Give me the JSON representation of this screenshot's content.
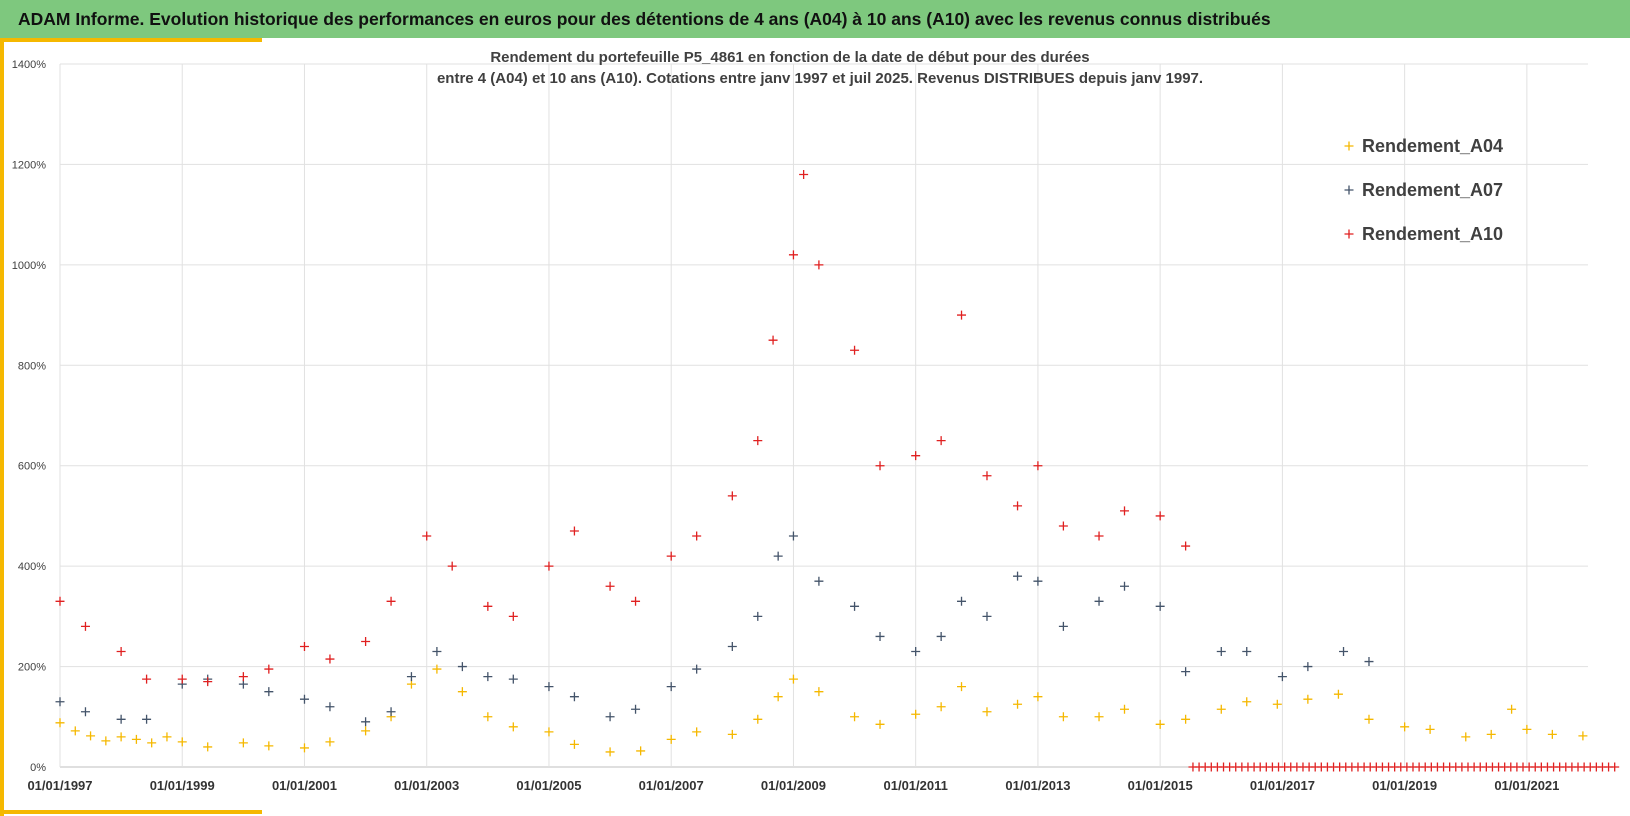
{
  "banner": {
    "title": "ADAM Informe. Evolution historique des performances en euros pour des détentions de 4 ans (A04) à 10 ans (A10) avec les revenus connus distribués"
  },
  "colors": {
    "banner_bg": "#7ec87e",
    "accent": "#f5b800",
    "A04": "#f5b800",
    "A07": "#44546a",
    "A10": "#e02020"
  },
  "chart_data": {
    "type": "scatter",
    "title_line1": "Rendement du portefeuille P5_4861 en fonction de la date de début pour des durées",
    "title_line2": "entre 4 (A04) et 10 ans (A10). Cotations  entre janv 1997 et juil 2025. Revenus DISTRIBUES  depuis janv 1997.",
    "marker": "+",
    "legend_position": "right",
    "grid": true,
    "x_range": [
      "1997-01-01",
      "2022-01-01"
    ],
    "ylim": [
      0,
      1400
    ],
    "y_unit": "%",
    "y_ticks": [
      "0%",
      "200%",
      "400%",
      "600%",
      "800%",
      "1000%",
      "1200%",
      "1400%"
    ],
    "x_ticks": [
      "01/01/1997",
      "01/01/1999",
      "01/01/2001",
      "01/01/2003",
      "01/01/2005",
      "01/01/2007",
      "01/01/2009",
      "01/01/2011",
      "01/01/2013",
      "01/01/2015",
      "01/01/2017",
      "01/01/2019",
      "01/01/2021"
    ],
    "series": [
      {
        "name": "Rendement_A04",
        "color": "#f5b800",
        "points": [
          [
            "1997-01",
            88
          ],
          [
            "1997-04",
            72
          ],
          [
            "1997-07",
            62
          ],
          [
            "1997-10",
            52
          ],
          [
            "1998-01",
            60
          ],
          [
            "1998-04",
            55
          ],
          [
            "1998-07",
            48
          ],
          [
            "1998-10",
            60
          ],
          [
            "1999-01",
            50
          ],
          [
            "1999-06",
            40
          ],
          [
            "2000-01",
            48
          ],
          [
            "2000-06",
            42
          ],
          [
            "2001-01",
            38
          ],
          [
            "2001-06",
            50
          ],
          [
            "2002-01",
            72
          ],
          [
            "2002-06",
            100
          ],
          [
            "2002-10",
            165
          ],
          [
            "2003-03",
            195
          ],
          [
            "2003-08",
            150
          ],
          [
            "2004-01",
            100
          ],
          [
            "2004-06",
            80
          ],
          [
            "2005-01",
            70
          ],
          [
            "2005-06",
            45
          ],
          [
            "2006-01",
            30
          ],
          [
            "2006-07",
            32
          ],
          [
            "2007-01",
            55
          ],
          [
            "2007-06",
            70
          ],
          [
            "2008-01",
            65
          ],
          [
            "2008-06",
            95
          ],
          [
            "2008-10",
            140
          ],
          [
            "2009-01",
            175
          ],
          [
            "2009-06",
            150
          ],
          [
            "2010-01",
            100
          ],
          [
            "2010-06",
            85
          ],
          [
            "2011-01",
            105
          ],
          [
            "2011-06",
            120
          ],
          [
            "2011-10",
            160
          ],
          [
            "2012-03",
            110
          ],
          [
            "2012-09",
            125
          ],
          [
            "2013-01",
            140
          ],
          [
            "2013-06",
            100
          ],
          [
            "2014-01",
            100
          ],
          [
            "2014-06",
            115
          ],
          [
            "2015-01",
            85
          ],
          [
            "2015-06",
            95
          ],
          [
            "2016-01",
            115
          ],
          [
            "2016-06",
            130
          ],
          [
            "2016-12",
            125
          ],
          [
            "2017-06",
            135
          ],
          [
            "2017-12",
            145
          ],
          [
            "2018-06",
            95
          ],
          [
            "2019-01",
            80
          ],
          [
            "2019-06",
            75
          ],
          [
            "2020-01",
            60
          ],
          [
            "2020-06",
            65
          ],
          [
            "2020-10",
            115
          ],
          [
            "2021-01",
            75
          ],
          [
            "2021-06",
            65
          ],
          [
            "2021-12",
            62
          ]
        ]
      },
      {
        "name": "Rendement_A07",
        "color": "#44546a",
        "points": [
          [
            "1997-01",
            130
          ],
          [
            "1997-06",
            110
          ],
          [
            "1998-01",
            95
          ],
          [
            "1998-06",
            95
          ],
          [
            "1999-01",
            165
          ],
          [
            "1999-06",
            175
          ],
          [
            "2000-01",
            165
          ],
          [
            "2000-06",
            150
          ],
          [
            "2001-01",
            135
          ],
          [
            "2001-06",
            120
          ],
          [
            "2002-01",
            90
          ],
          [
            "2002-06",
            110
          ],
          [
            "2002-10",
            180
          ],
          [
            "2003-03",
            230
          ],
          [
            "2003-08",
            200
          ],
          [
            "2004-01",
            180
          ],
          [
            "2004-06",
            175
          ],
          [
            "2005-01",
            160
          ],
          [
            "2005-06",
            140
          ],
          [
            "2006-01",
            100
          ],
          [
            "2006-06",
            115
          ],
          [
            "2007-01",
            160
          ],
          [
            "2007-06",
            195
          ],
          [
            "2008-01",
            240
          ],
          [
            "2008-06",
            300
          ],
          [
            "2008-10",
            420
          ],
          [
            "2009-01",
            460
          ],
          [
            "2009-06",
            370
          ],
          [
            "2010-01",
            320
          ],
          [
            "2010-06",
            260
          ],
          [
            "2011-01",
            230
          ],
          [
            "2011-06",
            260
          ],
          [
            "2011-10",
            330
          ],
          [
            "2012-03",
            300
          ],
          [
            "2012-09",
            380
          ],
          [
            "2013-01",
            370
          ],
          [
            "2013-06",
            280
          ],
          [
            "2014-01",
            330
          ],
          [
            "2014-06",
            360
          ],
          [
            "2015-01",
            320
          ],
          [
            "2015-06",
            190
          ],
          [
            "2016-01",
            230
          ],
          [
            "2016-06",
            230
          ],
          [
            "2017-01",
            180
          ],
          [
            "2017-06",
            200
          ],
          [
            "2018-01",
            230
          ],
          [
            "2018-06",
            210
          ]
        ]
      },
      {
        "name": "Rendement_A10",
        "color": "#e02020",
        "points": [
          [
            "1997-01",
            330
          ],
          [
            "1997-06",
            280
          ],
          [
            "1998-01",
            230
          ],
          [
            "1998-06",
            175
          ],
          [
            "1999-01",
            175
          ],
          [
            "1999-06",
            170
          ],
          [
            "2000-01",
            180
          ],
          [
            "2000-06",
            195
          ],
          [
            "2001-01",
            240
          ],
          [
            "2001-06",
            215
          ],
          [
            "2002-01",
            250
          ],
          [
            "2002-06",
            330
          ],
          [
            "2003-01",
            460
          ],
          [
            "2003-06",
            400
          ],
          [
            "2004-01",
            320
          ],
          [
            "2004-06",
            300
          ],
          [
            "2005-01",
            400
          ],
          [
            "2005-06",
            470
          ],
          [
            "2006-01",
            360
          ],
          [
            "2006-06",
            330
          ],
          [
            "2007-01",
            420
          ],
          [
            "2007-06",
            460
          ],
          [
            "2008-01",
            540
          ],
          [
            "2008-06",
            650
          ],
          [
            "2008-09",
            850
          ],
          [
            "2009-01",
            1020
          ],
          [
            "2009-03",
            1180
          ],
          [
            "2009-06",
            1000
          ],
          [
            "2010-01",
            830
          ],
          [
            "2010-06",
            600
          ],
          [
            "2011-01",
            620
          ],
          [
            "2011-06",
            650
          ],
          [
            "2011-10",
            900
          ],
          [
            "2012-03",
            580
          ],
          [
            "2012-09",
            520
          ],
          [
            "2013-01",
            600
          ],
          [
            "2013-06",
            480
          ],
          [
            "2014-01",
            460
          ],
          [
            "2014-06",
            510
          ],
          [
            "2015-01",
            500
          ],
          [
            "2015-06",
            440
          ]
        ]
      }
    ]
  }
}
